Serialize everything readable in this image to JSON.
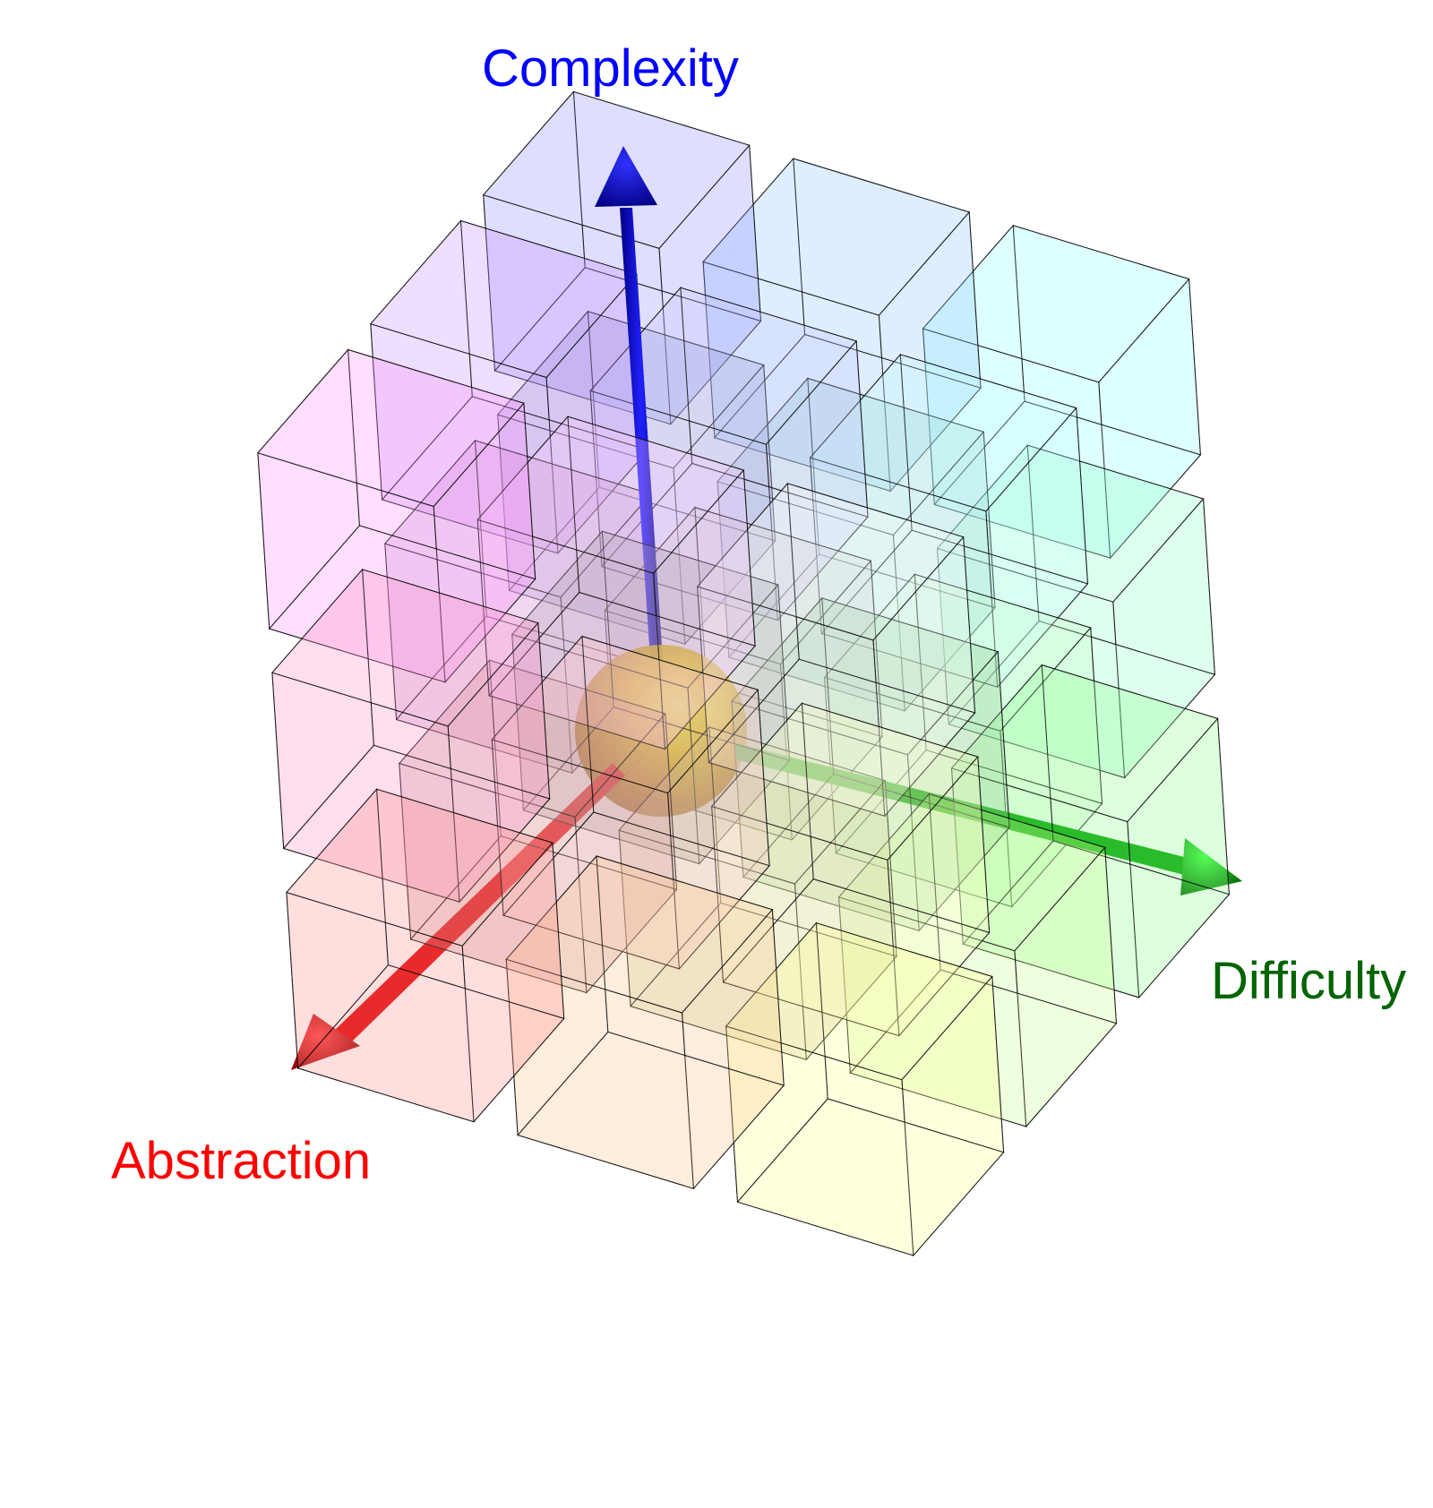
{
  "axes": {
    "complexity": {
      "label": "Complexity",
      "color": "#0000ff",
      "label_color": "#0000ff"
    },
    "difficulty": {
      "label": "Difficulty",
      "color": "#00cc00",
      "label_color": "#006400"
    },
    "abstraction": {
      "label": "Abstraction",
      "color": "#ff0000",
      "label_color": "#ff0000"
    }
  },
  "origin_sphere": {
    "color": "#e8c000"
  },
  "cube_grid": {
    "levels": [
      -1,
      0,
      1
    ],
    "edge_color": "#000000"
  }
}
